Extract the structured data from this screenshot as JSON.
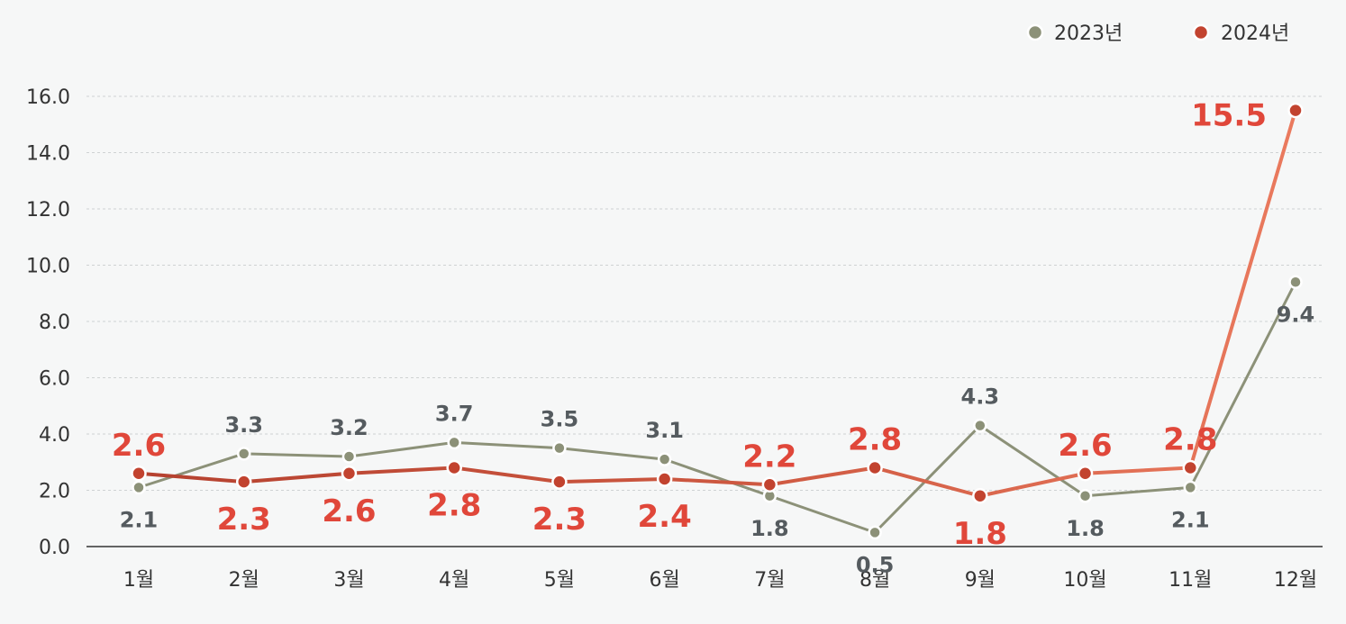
{
  "chart_data": {
    "type": "line",
    "categories": [
      "1월",
      "2월",
      "3월",
      "4월",
      "5월",
      "6월",
      "7월",
      "8월",
      "9월",
      "10월",
      "11월",
      "12월"
    ],
    "series": [
      {
        "name": "2023년",
        "color": "#8c9178",
        "values": [
          2.1,
          3.3,
          3.2,
          3.7,
          3.5,
          3.1,
          1.8,
          0.5,
          4.3,
          1.8,
          2.1,
          9.4
        ],
        "labels": [
          "2.1",
          "3.3",
          "3.2",
          "3.7",
          "3.5",
          "3.1",
          "1.8",
          "0.5",
          "4.3",
          "1.8",
          "2.1",
          "9.4"
        ]
      },
      {
        "name": "2024년",
        "color": "#c9523e",
        "values": [
          2.6,
          2.3,
          2.6,
          2.8,
          2.3,
          2.4,
          2.2,
          2.8,
          1.8,
          2.6,
          2.8,
          15.5
        ],
        "labels": [
          "2.6",
          "2.3",
          "2.6",
          "2.8",
          "2.3",
          "2.4",
          "2.2",
          "2.8",
          "1.8",
          "2.6",
          "2.8",
          "15.5"
        ]
      }
    ],
    "yticks": [
      "0.0",
      "2.0",
      "4.0",
      "6.0",
      "8.0",
      "10.0",
      "12.0",
      "14.0",
      "16.0"
    ],
    "ylim": [
      0,
      16
    ],
    "title": "",
    "xlabel": "",
    "ylabel": "",
    "grid": true,
    "legend_position": "top-right"
  }
}
